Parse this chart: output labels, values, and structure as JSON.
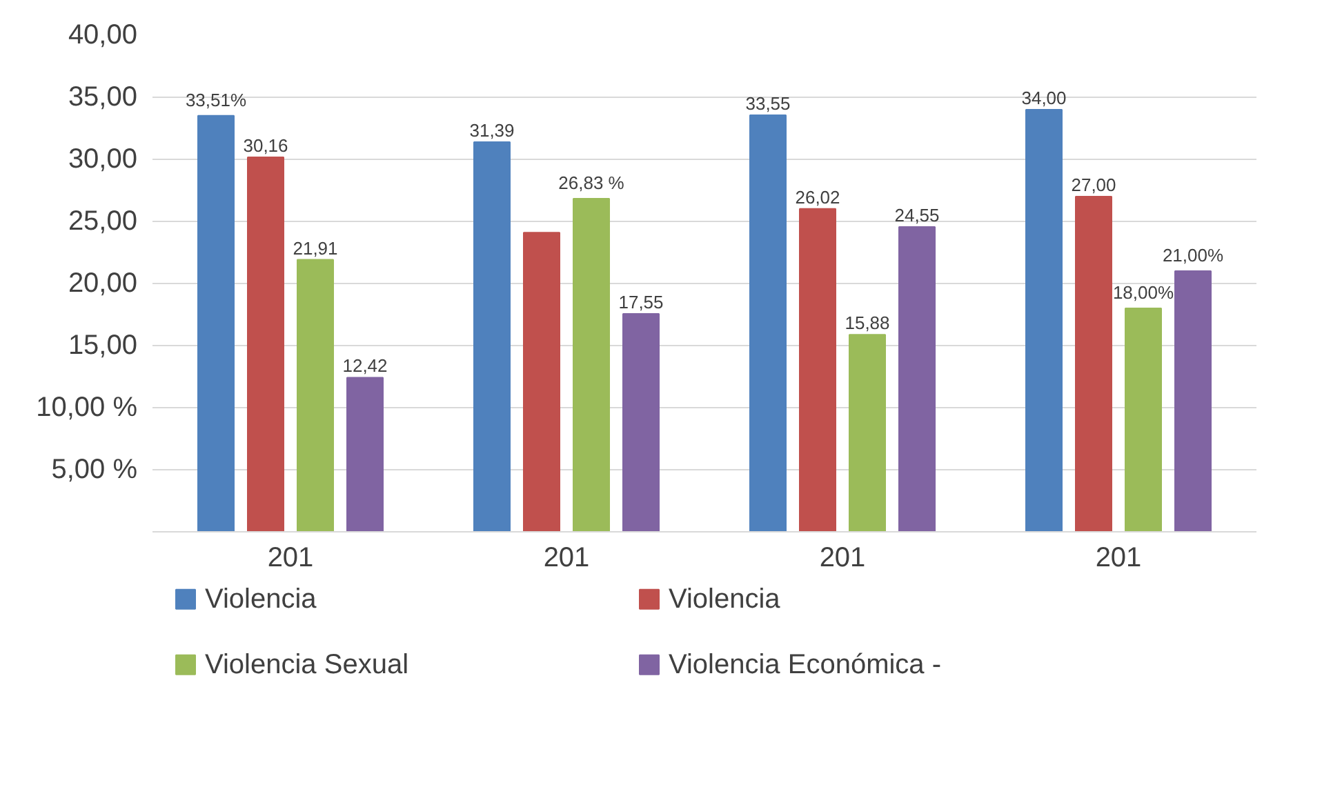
{
  "chart_data": {
    "type": "bar",
    "categories": [
      "201",
      "201",
      "201",
      "201"
    ],
    "series": [
      {
        "name": "Violencia",
        "color": "#4f81bd",
        "values": [
          33.51,
          31.39,
          33.55,
          34.0
        ],
        "value_labels": [
          "33,51%",
          "31,39",
          "33,55",
          "34,00"
        ]
      },
      {
        "name": "Violencia",
        "color": "#c0504d",
        "values": [
          30.16,
          24.1,
          26.02,
          27.0
        ],
        "value_labels": [
          "30,16",
          null,
          "26,02",
          "27,00"
        ]
      },
      {
        "name": "Violencia Sexual",
        "color": "#9bbb59",
        "values": [
          21.91,
          26.83,
          15.88,
          18.0
        ],
        "value_labels": [
          "21,91",
          "26,83 %",
          "15,88",
          "18,00%"
        ]
      },
      {
        "name": "Violencia Económica -",
        "color": "#8064a2",
        "values": [
          12.42,
          17.55,
          24.55,
          21.0
        ],
        "value_labels": [
          "12,42",
          "17,55",
          "24,55",
          "21,00%"
        ]
      }
    ],
    "ylim": [
      0,
      40
    ],
    "yticks": [
      {
        "value": 0,
        "label": null
      },
      {
        "value": 5,
        "label": "5,00 %"
      },
      {
        "value": 10,
        "label": "10,00 %"
      },
      {
        "value": 15,
        "label": "15,00"
      },
      {
        "value": 20,
        "label": "20,00"
      },
      {
        "value": 25,
        "label": "25,00"
      },
      {
        "value": 30,
        "label": "30,00"
      },
      {
        "value": 35,
        "label": "35,00"
      },
      {
        "value": 40,
        "label": "40,00"
      }
    ],
    "grid": "y",
    "legend": "bottom"
  }
}
